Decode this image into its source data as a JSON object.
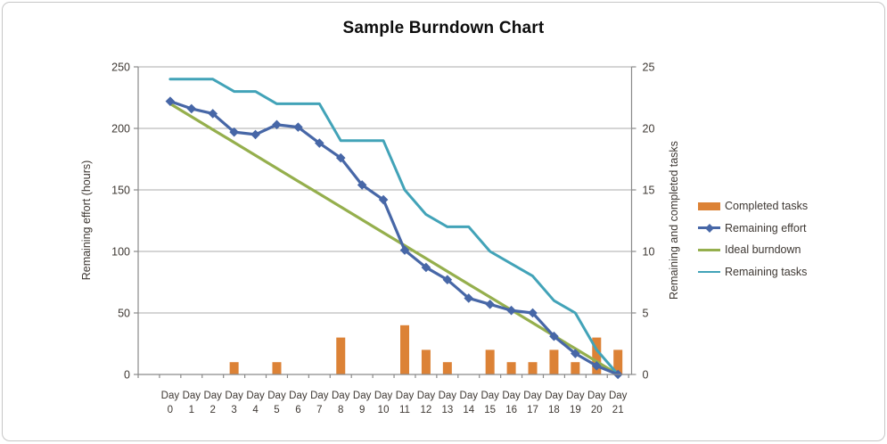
{
  "chart_data": {
    "type": "combo",
    "title": "Sample Burndown Chart",
    "categories": [
      "Day 0",
      "Day 1",
      "Day 2",
      "Day 3",
      "Day 4",
      "Day 5",
      "Day 6",
      "Day 7",
      "Day 8",
      "Day 9",
      "Day 10",
      "Day 11",
      "Day 12",
      "Day 13",
      "Day 14",
      "Day 15",
      "Day 16",
      "Day 17",
      "Day 18",
      "Day 19",
      "Day 20",
      "Day 21"
    ],
    "left_axis": {
      "label": "Remaining effort (hours)",
      "min": 0,
      "max": 250,
      "step": 50,
      "tick_values": [
        0,
        50,
        100,
        150,
        200,
        250
      ]
    },
    "right_axis": {
      "label": "Remaining and completed tasks",
      "min": 0,
      "max": 25,
      "step": 5,
      "tick_values": [
        0,
        5,
        10,
        15,
        20,
        25
      ]
    },
    "grid": true,
    "legend_position": "right",
    "series": [
      {
        "name": "Completed tasks",
        "type": "bar",
        "axis": "right",
        "color": "#dc8236",
        "values": [
          0,
          0,
          0,
          1,
          0,
          1,
          0,
          0,
          3,
          0,
          0,
          4,
          2,
          1,
          0,
          2,
          1,
          1,
          2,
          1,
          3,
          2
        ]
      },
      {
        "name": "Remaining effort",
        "type": "line-diamond",
        "axis": "left",
        "color": "#4767a7",
        "values": [
          222,
          216,
          212,
          197,
          195,
          203,
          201,
          188,
          176,
          154,
          142,
          101,
          87,
          77,
          62,
          57,
          52,
          50,
          31,
          17,
          7,
          0
        ]
      },
      {
        "name": "Ideal burndown",
        "type": "line",
        "axis": "left",
        "color": "#95af4d",
        "values": [
          220,
          209.5,
          199,
          188.6,
          178.1,
          167.6,
          157.1,
          146.7,
          136.2,
          125.7,
          115.2,
          104.8,
          94.3,
          83.8,
          73.3,
          62.9,
          52.4,
          41.9,
          31.4,
          21,
          10.5,
          0
        ]
      },
      {
        "name": "Remaining tasks",
        "type": "line",
        "axis": "right",
        "color": "#42a3b8",
        "values": [
          24,
          24,
          24,
          23,
          23,
          22,
          22,
          22,
          19,
          19,
          19,
          15,
          13,
          12,
          12,
          10,
          9,
          8,
          6,
          5,
          2,
          0
        ]
      }
    ],
    "colors": {
      "gridline": "#ababab",
      "axis_line": "#8a8a8a",
      "tick_text": "#3e3833",
      "title_text": "#0d0d0d",
      "frame_border": "#c6c6c6"
    }
  }
}
